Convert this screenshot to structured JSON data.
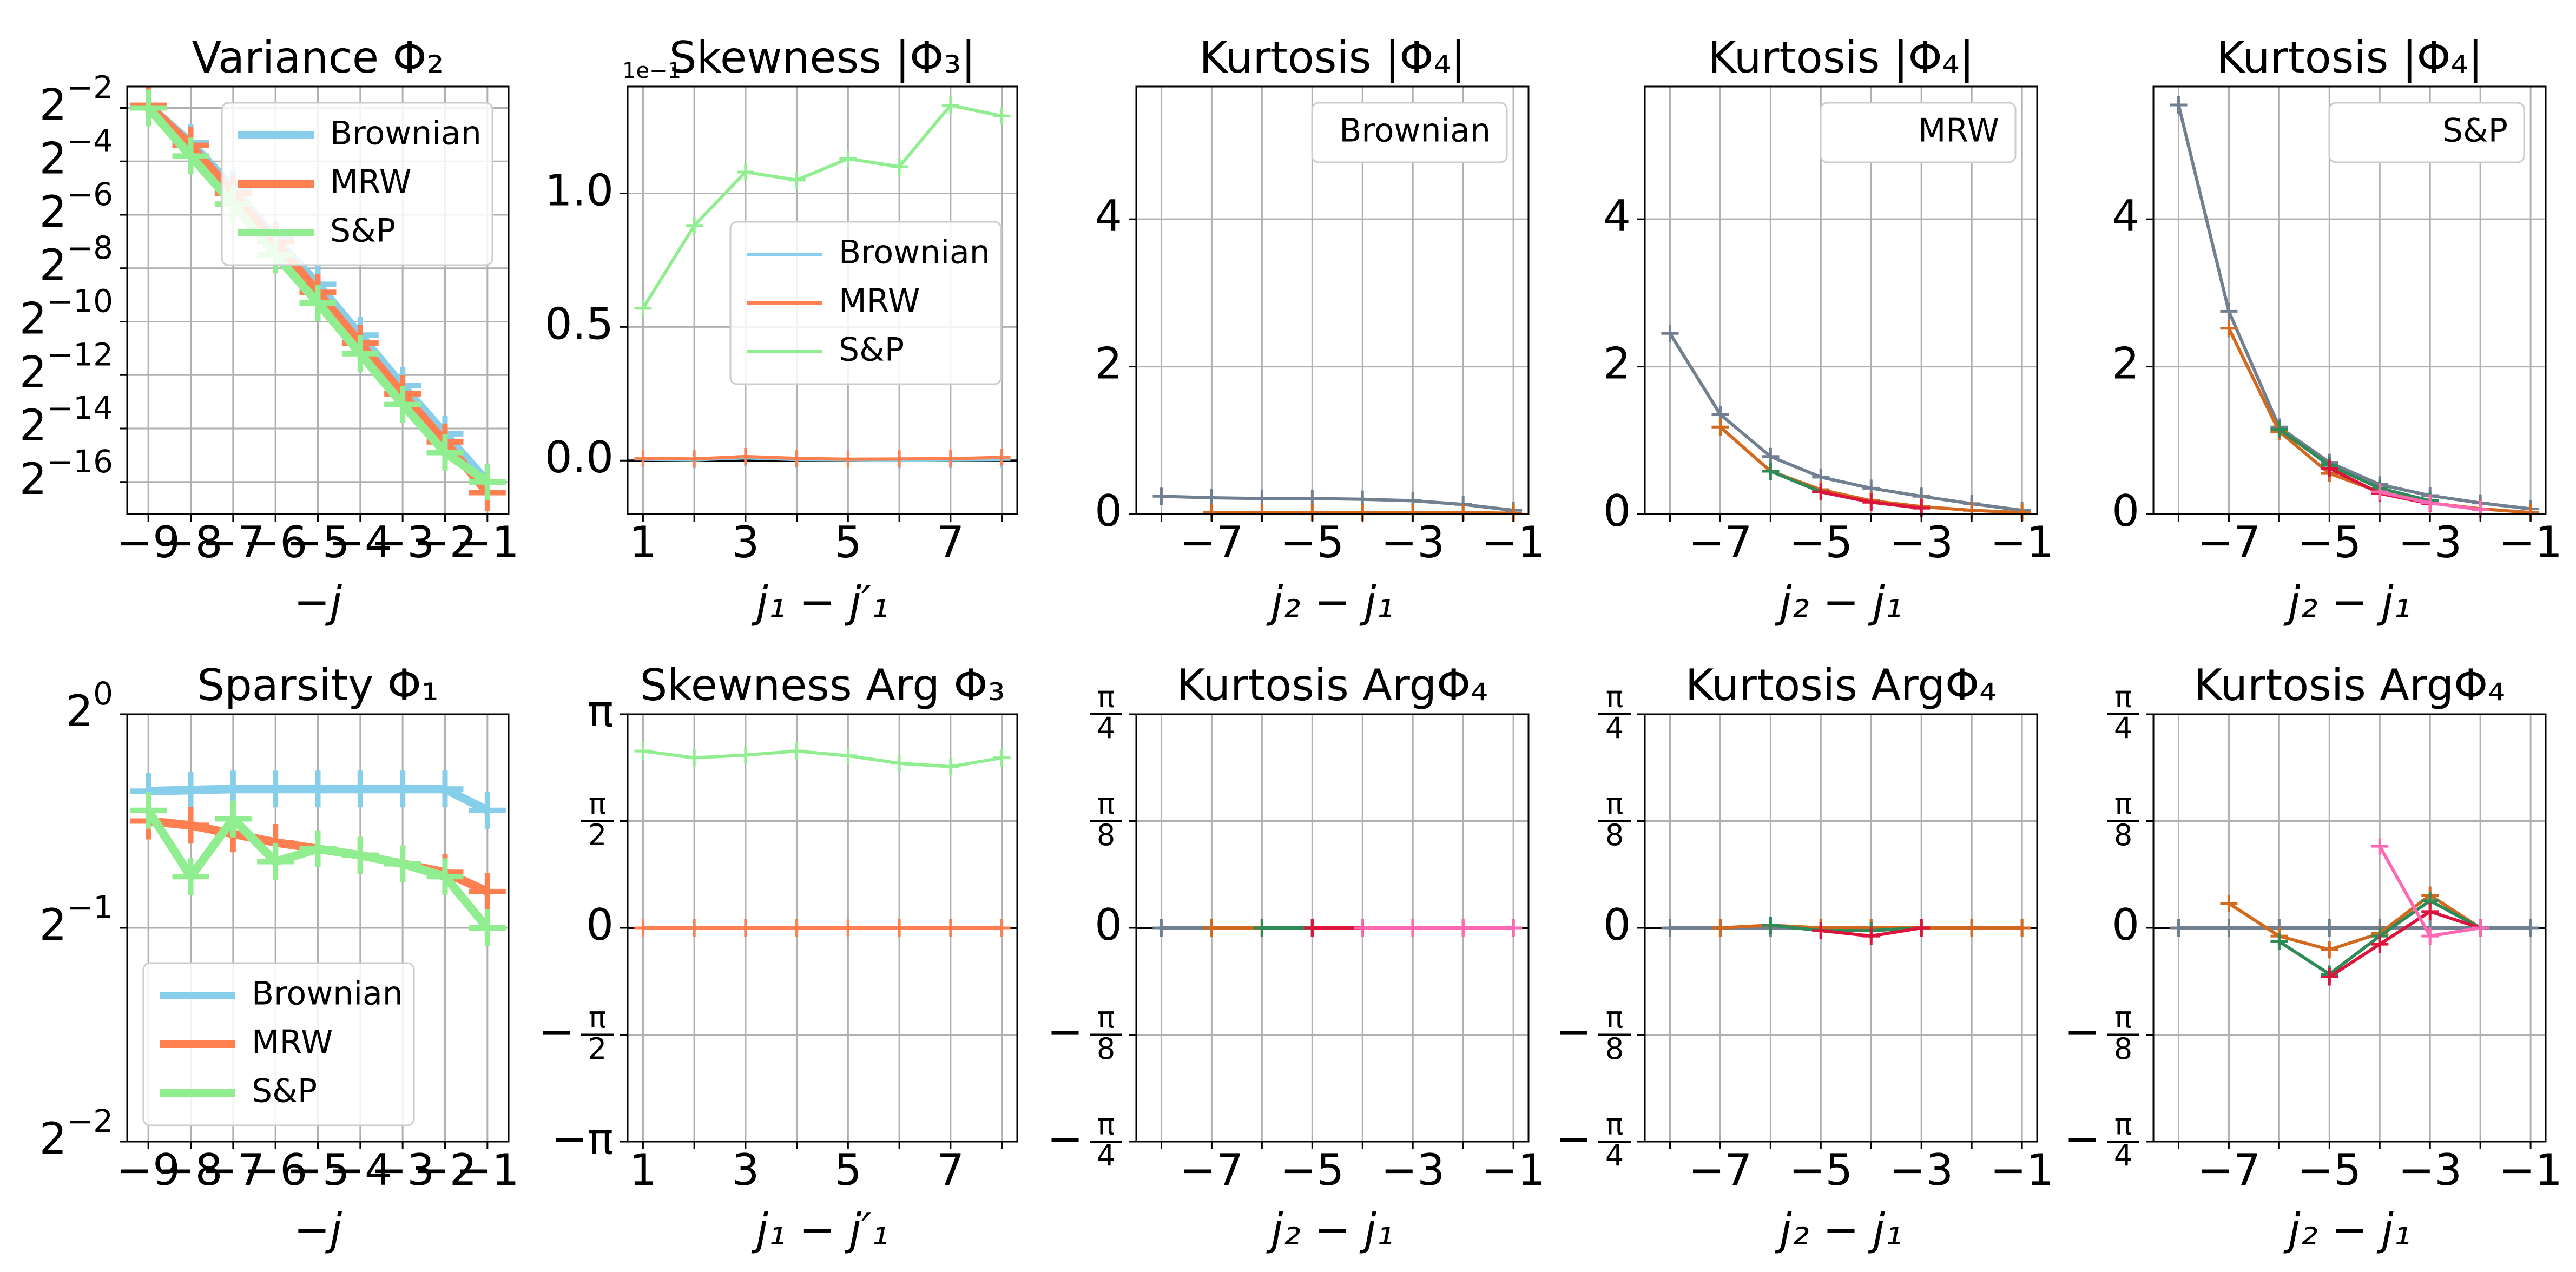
{
  "colors": {
    "Brownian": "#87ceeb",
    "MRW": "#ff7f50",
    "S&P": "#90ee90",
    "slate": "#708090",
    "darkorange": "#d2691e",
    "seagreen": "#2e8b57",
    "crimson": "#dc143c",
    "hotpink": "#ff69b4",
    "zero_line": "#2f4f4f"
  },
  "chart_data": [
    {
      "type": "line",
      "title": "Variance Φ₂",
      "xlabel": "−j",
      "ylabel": "",
      "xlim": [
        -9.5,
        -0.5
      ],
      "ylim": [
        -17.2,
        -1.2
      ],
      "y_scale": "log2",
      "x_ticks": [
        -9,
        -8,
        -7,
        -6,
        -5,
        -4,
        -3,
        -2,
        -1
      ],
      "x_tick_labels": [
        "−9",
        "−8",
        "−7",
        "−6",
        "−5",
        "−4",
        "−3",
        "−2",
        "−1"
      ],
      "y_ticks": [
        -2,
        -4,
        -6,
        -8,
        -10,
        -12,
        -14,
        -16
      ],
      "y_tick_labels": [
        "2^−2",
        "2^−4",
        "2^−6",
        "2^−8",
        "2^−10",
        "2^−12",
        "2^−14",
        "2^−16"
      ],
      "grid": true,
      "legend": "upper right",
      "series": [
        {
          "name": "Brownian",
          "x": [
            -9,
            -8,
            -7,
            -6,
            -5,
            -4,
            -3,
            -2,
            -1
          ],
          "y": [
            -1.9,
            -3.3,
            -5.0,
            -6.9,
            -8.6,
            -10.5,
            -12.4,
            -14.2,
            -16.0
          ]
        },
        {
          "name": "MRW",
          "x": [
            -9,
            -8,
            -7,
            -6,
            -5,
            -4,
            -3,
            -2,
            -1
          ],
          "y": [
            -1.9,
            -3.4,
            -5.2,
            -7.0,
            -8.9,
            -10.8,
            -12.7,
            -14.5,
            -16.4
          ]
        },
        {
          "name": "S&P",
          "x": [
            -9,
            -8,
            -7,
            -6,
            -5,
            -4,
            -3,
            -2,
            -1
          ],
          "y": [
            -2.0,
            -3.8,
            -5.6,
            -7.5,
            -9.3,
            -11.2,
            -13.1,
            -14.9,
            -16.0
          ]
        }
      ]
    },
    {
      "type": "line",
      "title": "Skewness |Φ₃|",
      "xlabel": "j₁ − j′₁",
      "ylabel": "",
      "scale_label": "1e−1",
      "xlim": [
        0.7,
        8.3
      ],
      "ylim": [
        -0.2,
        1.4
      ],
      "x_ticks": [
        1,
        2,
        3,
        4,
        5,
        6,
        7,
        8
      ],
      "x_tick_labels": [
        "1",
        "",
        "3",
        "",
        "5",
        "",
        "7",
        ""
      ],
      "y_ticks": [
        0.0,
        0.5,
        1.0
      ],
      "y_tick_labels": [
        "0.0",
        "0.5",
        "1.0"
      ],
      "grid": true,
      "legend": "center right",
      "series": [
        {
          "name": "Brownian",
          "x": [
            1,
            2,
            3,
            4,
            5,
            6,
            7,
            8
          ],
          "y": [
            0.005,
            0.003,
            0.01,
            0.004,
            0.003,
            0.002,
            0.003,
            0.004
          ]
        },
        {
          "name": "MRW",
          "x": [
            1,
            2,
            3,
            4,
            5,
            6,
            7,
            8
          ],
          "y": [
            0.008,
            0.006,
            0.015,
            0.008,
            0.005,
            0.006,
            0.007,
            0.012
          ]
        },
        {
          "name": "S&P",
          "x": [
            1,
            2,
            3,
            4,
            5,
            6,
            7,
            8
          ],
          "y": [
            0.57,
            0.88,
            1.08,
            1.05,
            1.13,
            1.1,
            1.33,
            1.29
          ]
        }
      ]
    },
    {
      "type": "line",
      "title": "Kurtosis |Φ₄|",
      "xlabel": "j₂ − j₁",
      "ylabel": "",
      "xlim": [
        -8.5,
        -0.7
      ],
      "ylim": [
        0,
        5.8
      ],
      "x_ticks": [
        -8,
        -7,
        -6,
        -5,
        -4,
        -3,
        -2,
        -1
      ],
      "x_tick_labels": [
        "",
        "−7",
        "",
        "−5",
        "",
        "−3",
        "",
        "−1"
      ],
      "y_ticks": [
        0,
        2,
        4
      ],
      "y_tick_labels": [
        "0",
        "2",
        "4"
      ],
      "grid": true,
      "legend_label": "Brownian",
      "series": [
        {
          "x": [
            -8,
            -7,
            -6,
            -5,
            -4,
            -3,
            -2,
            -1
          ],
          "y": [
            0.24,
            0.22,
            0.21,
            0.21,
            0.2,
            0.18,
            0.13,
            0.05
          ],
          "color_key": "slate"
        },
        {
          "x": [
            -7,
            -6,
            -5,
            -4,
            -3,
            -2,
            -1
          ],
          "y": [
            0.02,
            0.02,
            0.02,
            0.02,
            0.02,
            0.02,
            0.01
          ],
          "color_key": "darkorange"
        }
      ]
    },
    {
      "type": "line",
      "title": "Kurtosis |Φ₄|",
      "xlabel": "j₂ − j₁",
      "ylabel": "",
      "xlim": [
        -8.5,
        -0.7
      ],
      "ylim": [
        0,
        5.8
      ],
      "x_ticks": [
        -8,
        -7,
        -6,
        -5,
        -4,
        -3,
        -2,
        -1
      ],
      "x_tick_labels": [
        "",
        "−7",
        "",
        "−5",
        "",
        "−3",
        "",
        "−1"
      ],
      "y_ticks": [
        0,
        2,
        4
      ],
      "y_tick_labels": [
        "0",
        "2",
        "4"
      ],
      "grid": true,
      "legend_label": "MRW",
      "series": [
        {
          "x": [
            -8,
            -7,
            -6,
            -5,
            -4,
            -3,
            -2,
            -1
          ],
          "y": [
            2.45,
            1.35,
            0.78,
            0.5,
            0.35,
            0.24,
            0.14,
            0.05
          ],
          "color_key": "slate"
        },
        {
          "x": [
            -7,
            -6,
            -5,
            -4,
            -3,
            -2,
            -1
          ],
          "y": [
            1.18,
            0.58,
            0.33,
            0.18,
            0.1,
            0.05,
            0.02
          ],
          "color_key": "darkorange"
        },
        {
          "x": [
            -6,
            -5
          ],
          "y": [
            0.58,
            0.3
          ],
          "color_key": "seagreen"
        },
        {
          "x": [
            -5,
            -4,
            -3
          ],
          "y": [
            0.3,
            0.16,
            0.08
          ],
          "color_key": "crimson"
        }
      ]
    },
    {
      "type": "line",
      "title": "Kurtosis |Φ₄|",
      "xlabel": "j₂ − j₁",
      "ylabel": "",
      "xlim": [
        -8.5,
        -0.7
      ],
      "ylim": [
        0,
        5.8
      ],
      "x_ticks": [
        -8,
        -7,
        -6,
        -5,
        -4,
        -3,
        -2,
        -1
      ],
      "x_tick_labels": [
        "",
        "−7",
        "",
        "−5",
        "",
        "−3",
        "",
        "−1"
      ],
      "y_ticks": [
        0,
        2,
        4
      ],
      "y_tick_labels": [
        "0",
        "2",
        "4"
      ],
      "grid": true,
      "legend_label": "S&P",
      "series": [
        {
          "x": [
            -8,
            -7,
            -6,
            -5,
            -4,
            -3,
            -2,
            -1
          ],
          "y": [
            5.55,
            2.75,
            1.18,
            0.7,
            0.4,
            0.25,
            0.15,
            0.07
          ],
          "color_key": "slate"
        },
        {
          "x": [
            -7,
            -6,
            -5,
            -4,
            -3,
            -2,
            -1
          ],
          "y": [
            2.52,
            1.12,
            0.55,
            0.3,
            0.15,
            0.07,
            0.02
          ],
          "color_key": "darkorange"
        },
        {
          "x": [
            -6,
            -5,
            -4,
            -3
          ],
          "y": [
            1.15,
            0.66,
            0.35,
            0.18
          ],
          "color_key": "seagreen"
        },
        {
          "x": [
            -5,
            -4,
            -3
          ],
          "y": [
            0.62,
            0.28,
            0.14
          ],
          "color_key": "crimson"
        },
        {
          "x": [
            -4,
            -3,
            -2
          ],
          "y": [
            0.3,
            0.15,
            0.06
          ],
          "color_key": "hotpink"
        }
      ]
    },
    {
      "type": "line",
      "title": "Sparsity Φ₁",
      "xlabel": "−j",
      "ylabel": "",
      "xlim": [
        -9.5,
        -0.5
      ],
      "ylim": [
        -2.0,
        0.0
      ],
      "y_scale": "log2",
      "x_ticks": [
        -9,
        -8,
        -7,
        -6,
        -5,
        -4,
        -3,
        -2,
        -1
      ],
      "x_tick_labels": [
        "−9",
        "−8",
        "−7",
        "−6",
        "−5",
        "−4",
        "−3",
        "−2",
        "−1"
      ],
      "y_ticks": [
        0,
        -1,
        -2
      ],
      "y_tick_labels": [
        "2^0",
        "2^−1",
        "2^−2"
      ],
      "grid": true,
      "legend": "lower left",
      "series": [
        {
          "name": "Brownian",
          "x": [
            -9,
            -8,
            -7,
            -6,
            -5,
            -4,
            -3,
            -2,
            -1
          ],
          "y": [
            -0.36,
            -0.355,
            -0.35,
            -0.35,
            -0.35,
            -0.35,
            -0.35,
            -0.35,
            -0.45
          ]
        },
        {
          "name": "MRW",
          "x": [
            -9,
            -8,
            -7,
            -6,
            -5,
            -4,
            -3,
            -2,
            -1
          ],
          "y": [
            -0.5,
            -0.52,
            -0.56,
            -0.6,
            -0.63,
            -0.66,
            -0.7,
            -0.74,
            -0.83
          ]
        },
        {
          "name": "S&P",
          "x": [
            -9,
            -8,
            -7,
            -6,
            -5,
            -4,
            -3,
            -2,
            -1
          ],
          "y": [
            -0.45,
            -0.76,
            -0.49,
            -0.69,
            -0.63,
            -0.66,
            -0.7,
            -0.76,
            -1.0
          ]
        }
      ]
    },
    {
      "type": "line",
      "title": "Skewness Arg Φ₃",
      "xlabel": "j₁ − j′₁",
      "ylabel": "",
      "xlim": [
        0.7,
        8.3
      ],
      "ylim": [
        -3.1416,
        3.1416
      ],
      "x_ticks": [
        1,
        2,
        3,
        4,
        5,
        6,
        7,
        8
      ],
      "x_tick_labels": [
        "1",
        "",
        "3",
        "",
        "5",
        "",
        "7",
        ""
      ],
      "y_ticks": [
        3.1416,
        1.5708,
        0,
        -1.5708,
        -3.1416
      ],
      "y_tick_labels": [
        "π",
        "π/2",
        "0",
        "−π/2",
        "−π"
      ],
      "grid": true,
      "series": [
        {
          "name": "Brownian",
          "x": [
            1,
            2,
            3,
            4,
            5,
            6,
            7,
            8
          ],
          "y": [
            0,
            0,
            0,
            0,
            0,
            0,
            0,
            0
          ]
        },
        {
          "name": "MRW",
          "x": [
            1,
            2,
            3,
            4,
            5,
            6,
            7,
            8
          ],
          "y": [
            0,
            0,
            0,
            0,
            0,
            0,
            0,
            0
          ]
        },
        {
          "name": "S&P",
          "x": [
            1,
            2,
            3,
            4,
            5,
            6,
            7,
            8
          ],
          "y": [
            2.6,
            2.5,
            2.54,
            2.6,
            2.53,
            2.42,
            2.37,
            2.5
          ]
        }
      ]
    },
    {
      "type": "line",
      "title": "Kurtosis ArgΦ₄",
      "xlabel": "j₂ − j₁",
      "ylabel": "",
      "xlim": [
        -8.5,
        -0.7
      ],
      "ylim": [
        -0.7854,
        0.7854
      ],
      "x_ticks": [
        -8,
        -7,
        -6,
        -5,
        -4,
        -3,
        -2,
        -1
      ],
      "x_tick_labels": [
        "",
        "−7",
        "",
        "−5",
        "",
        "−3",
        "",
        "−1"
      ],
      "y_ticks": [
        0.7854,
        0.3927,
        0,
        -0.3927,
        -0.7854
      ],
      "y_tick_labels": [
        "π/4",
        "π/8",
        "0",
        "−π/8",
        "−π/4"
      ],
      "grid": true,
      "series": [
        {
          "x": [
            -8,
            -7,
            -6,
            -5,
            -4,
            -3,
            -2,
            -1
          ],
          "y": [
            0,
            0,
            0,
            0,
            0,
            0,
            0,
            0
          ],
          "color_key": "slate"
        },
        {
          "x": [
            -7,
            -6,
            -5,
            -4,
            -3,
            -2,
            -1
          ],
          "y": [
            0,
            0,
            0,
            0,
            0,
            0,
            0
          ],
          "color_key": "darkorange"
        },
        {
          "x": [
            -6,
            -5,
            -4
          ],
          "y": [
            0,
            0,
            0
          ],
          "color_key": "seagreen"
        },
        {
          "x": [
            -5,
            -4,
            -3
          ],
          "y": [
            0,
            0,
            0
          ],
          "color_key": "crimson"
        },
        {
          "x": [
            -4,
            -3,
            -2,
            -1
          ],
          "y": [
            0,
            0,
            0,
            0
          ],
          "color_key": "hotpink"
        }
      ]
    },
    {
      "type": "line",
      "title": "Kurtosis ArgΦ₄",
      "xlabel": "j₂ − j₁",
      "ylabel": "",
      "xlim": [
        -8.5,
        -0.7
      ],
      "ylim": [
        -0.7854,
        0.7854
      ],
      "x_ticks": [
        -8,
        -7,
        -6,
        -5,
        -4,
        -3,
        -2,
        -1
      ],
      "x_tick_labels": [
        "",
        "−7",
        "",
        "−5",
        "",
        "−3",
        "",
        "−1"
      ],
      "y_ticks": [
        0.7854,
        0.3927,
        0,
        -0.3927,
        -0.7854
      ],
      "y_tick_labels": [
        "π/4",
        "π/8",
        "0",
        "−π/8",
        "−π/4"
      ],
      "grid": true,
      "series": [
        {
          "x": [
            -8,
            -7,
            -6,
            -5,
            -4,
            -3,
            -2,
            -1
          ],
          "y": [
            0,
            0,
            0,
            0,
            0,
            0,
            0,
            0
          ],
          "color_key": "slate"
        },
        {
          "x": [
            -7,
            -6,
            -5,
            -4,
            -3,
            -2,
            -1
          ],
          "y": [
            0,
            0.01,
            0,
            0,
            0,
            0,
            0
          ],
          "color_key": "darkorange"
        },
        {
          "x": [
            -6,
            -5,
            -4,
            -3
          ],
          "y": [
            0.01,
            -0.01,
            -0.01,
            0
          ],
          "color_key": "seagreen"
        },
        {
          "x": [
            -5,
            -4,
            -3
          ],
          "y": [
            -0.01,
            -0.03,
            0
          ],
          "color_key": "crimson"
        }
      ]
    },
    {
      "type": "line",
      "title": "Kurtosis ArgΦ₄",
      "xlabel": "j₂ − j₁",
      "ylabel": "",
      "xlim": [
        -8.5,
        -0.7
      ],
      "ylim": [
        -0.7854,
        0.7854
      ],
      "x_ticks": [
        -8,
        -7,
        -6,
        -5,
        -4,
        -3,
        -2,
        -1
      ],
      "x_tick_labels": [
        "",
        "−7",
        "",
        "−5",
        "",
        "−3",
        "",
        "−1"
      ],
      "y_ticks": [
        0.7854,
        0.3927,
        0,
        -0.3927,
        -0.7854
      ],
      "y_tick_labels": [
        "π/4",
        "π/8",
        "0",
        "−π/8",
        "−π/4"
      ],
      "grid": true,
      "series": [
        {
          "x": [
            -8,
            -7,
            -6,
            -5,
            -4,
            -3,
            -2,
            -1
          ],
          "y": [
            0,
            0,
            0,
            0,
            0,
            0,
            0,
            0
          ],
          "color_key": "slate"
        },
        {
          "x": [
            -7,
            -6,
            -5,
            -4,
            -3,
            -2
          ],
          "y": [
            0.09,
            -0.03,
            -0.08,
            -0.02,
            0.12,
            0
          ],
          "color_key": "darkorange"
        },
        {
          "x": [
            -6,
            -5,
            -4,
            -3,
            -2
          ],
          "y": [
            -0.05,
            -0.17,
            -0.03,
            0.1,
            0
          ],
          "color_key": "seagreen"
        },
        {
          "x": [
            -5,
            -4,
            -3,
            -2
          ],
          "y": [
            -0.18,
            -0.06,
            0.06,
            0
          ],
          "color_key": "crimson"
        },
        {
          "x": [
            -4,
            -3,
            -2
          ],
          "y": [
            0.3,
            -0.03,
            0
          ],
          "color_key": "hotpink"
        }
      ]
    }
  ]
}
